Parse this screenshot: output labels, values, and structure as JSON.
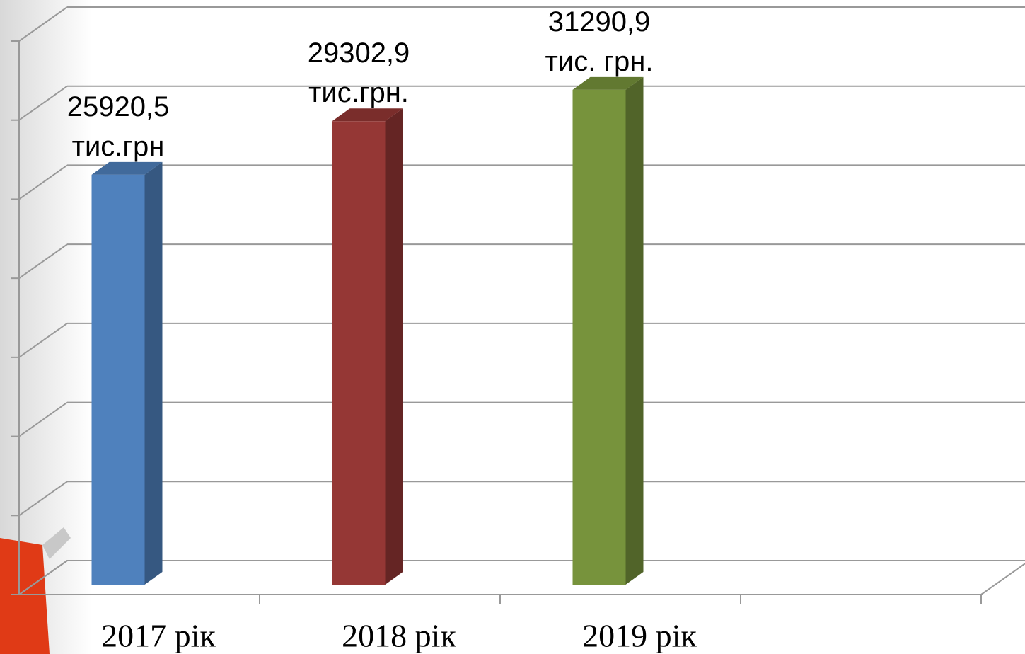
{
  "chart_data": {
    "type": "bar3d",
    "categories": [
      "2017 рік",
      "2018 рік",
      "2019 рік",
      null
    ],
    "values": [
      25920.5,
      29302.9,
      31290.9,
      null
    ],
    "value_labels": [
      "25920,5\nтис.грн",
      "29302,9\nтис.грн.",
      "31290,9\nтис. грн.",
      null
    ],
    "colors": [
      "#4f81bd",
      "#953735",
      "#77933c",
      null
    ],
    "ylim": [
      0,
      35000
    ],
    "yticks": [
      0,
      5000,
      10000,
      15000,
      20000,
      25000,
      30000,
      35000
    ],
    "grid": true
  }
}
